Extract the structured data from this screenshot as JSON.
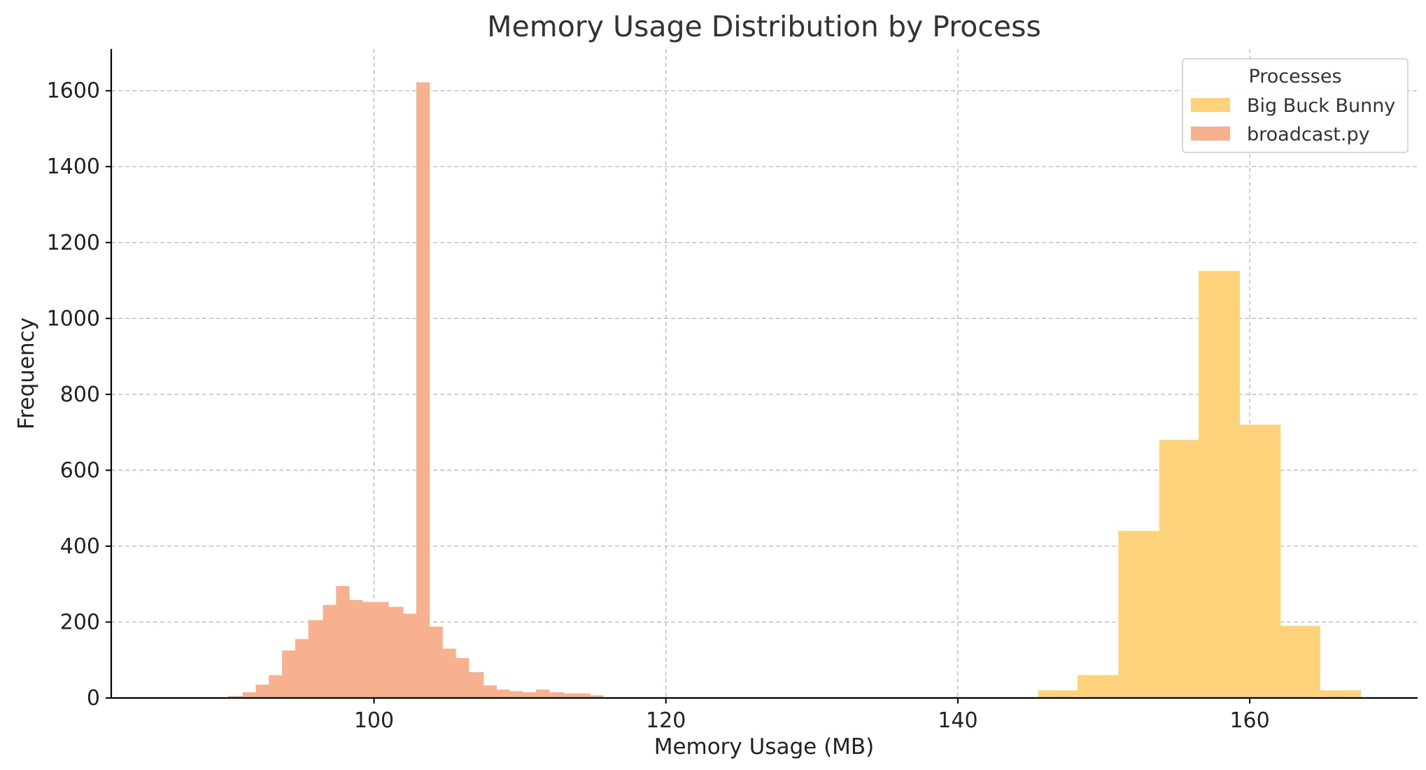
{
  "chart_data": {
    "type": "histogram",
    "title": "Memory Usage Distribution by Process",
    "xlabel": "Memory Usage (MB)",
    "ylabel": "Frequency",
    "xlim": [
      82,
      171.5
    ],
    "ylim": [
      0,
      1710
    ],
    "xticks": [
      100,
      120,
      140,
      160
    ],
    "yticks": [
      0,
      200,
      400,
      600,
      800,
      1000,
      1200,
      1400,
      1600
    ],
    "grid": true,
    "legend": {
      "title": "Processes",
      "position": "top-right"
    },
    "series": [
      {
        "name": "Big Buck Bunny",
        "color": "#fdd27a",
        "bins": [
          {
            "x0": 145.5,
            "x1": 148.2,
            "y": 20
          },
          {
            "x0": 148.2,
            "x1": 151.0,
            "y": 60
          },
          {
            "x0": 151.0,
            "x1": 153.8,
            "y": 440
          },
          {
            "x0": 153.8,
            "x1": 156.5,
            "y": 680
          },
          {
            "x0": 156.5,
            "x1": 159.3,
            "y": 1125
          },
          {
            "x0": 159.3,
            "x1": 162.1,
            "y": 720
          },
          {
            "x0": 162.1,
            "x1": 164.8,
            "y": 190
          },
          {
            "x0": 164.8,
            "x1": 167.6,
            "y": 20
          }
        ]
      },
      {
        "name": "broadcast.py",
        "color": "#f8b18e",
        "bins": [
          {
            "x0": 90.0,
            "x1": 91.0,
            "y": 5
          },
          {
            "x0": 91.0,
            "x1": 91.9,
            "y": 15
          },
          {
            "x0": 91.9,
            "x1": 92.8,
            "y": 35
          },
          {
            "x0": 92.8,
            "x1": 93.7,
            "y": 60
          },
          {
            "x0": 93.7,
            "x1": 94.6,
            "y": 125
          },
          {
            "x0": 94.6,
            "x1": 95.5,
            "y": 155
          },
          {
            "x0": 95.5,
            "x1": 96.5,
            "y": 205
          },
          {
            "x0": 96.5,
            "x1": 97.4,
            "y": 245
          },
          {
            "x0": 97.4,
            "x1": 98.3,
            "y": 295
          },
          {
            "x0": 98.3,
            "x1": 99.2,
            "y": 258
          },
          {
            "x0": 99.2,
            "x1": 100.1,
            "y": 253
          },
          {
            "x0": 100.1,
            "x1": 101.0,
            "y": 253
          },
          {
            "x0": 101.0,
            "x1": 102.0,
            "y": 240
          },
          {
            "x0": 102.0,
            "x1": 102.9,
            "y": 222
          },
          {
            "x0": 102.9,
            "x1": 103.8,
            "y": 1622
          },
          {
            "x0": 103.8,
            "x1": 104.7,
            "y": 188
          },
          {
            "x0": 104.7,
            "x1": 105.6,
            "y": 130
          },
          {
            "x0": 105.6,
            "x1": 106.5,
            "y": 105
          },
          {
            "x0": 106.5,
            "x1": 107.5,
            "y": 68
          },
          {
            "x0": 107.5,
            "x1": 108.4,
            "y": 33
          },
          {
            "x0": 108.4,
            "x1": 109.3,
            "y": 22
          },
          {
            "x0": 109.3,
            "x1": 110.2,
            "y": 18
          },
          {
            "x0": 110.2,
            "x1": 111.1,
            "y": 15
          },
          {
            "x0": 111.1,
            "x1": 112.0,
            "y": 22
          },
          {
            "x0": 112.0,
            "x1": 113.0,
            "y": 15
          },
          {
            "x0": 113.0,
            "x1": 113.9,
            "y": 12
          },
          {
            "x0": 113.9,
            "x1": 114.8,
            "y": 12
          },
          {
            "x0": 114.8,
            "x1": 115.7,
            "y": 7
          }
        ]
      }
    ]
  }
}
